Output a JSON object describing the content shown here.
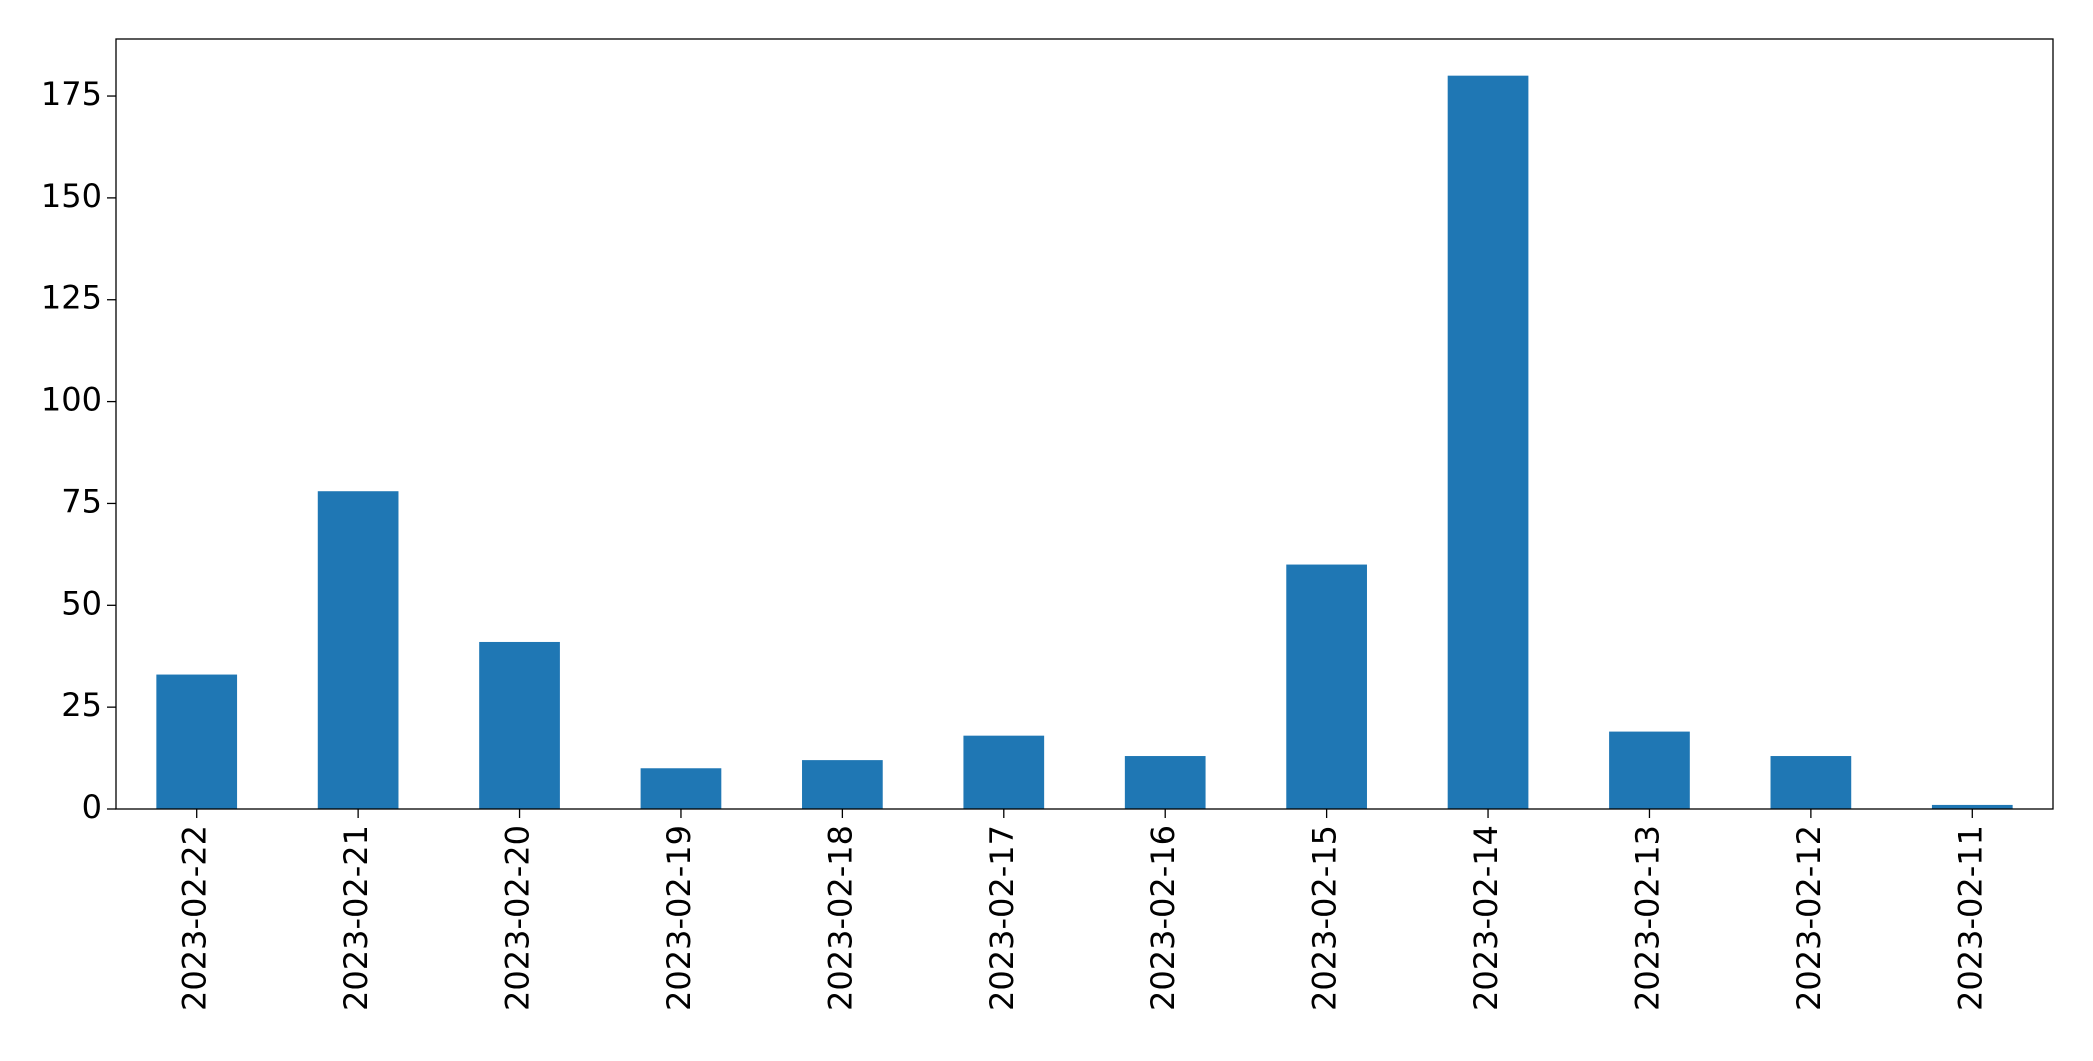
{
  "chart_data": {
    "type": "bar",
    "categories": [
      "2023-02-22",
      "2023-02-21",
      "2023-02-20",
      "2023-02-19",
      "2023-02-18",
      "2023-02-17",
      "2023-02-16",
      "2023-02-15",
      "2023-02-14",
      "2023-02-13",
      "2023-02-12",
      "2023-02-11"
    ],
    "values": [
      33,
      78,
      41,
      10,
      12,
      18,
      13,
      60,
      180,
      19,
      13,
      1
    ],
    "color": "#1f77b4",
    "ylim": [
      0,
      189
    ],
    "yticks": [
      0,
      25,
      50,
      75,
      100,
      125,
      150,
      175
    ],
    "grid": false
  }
}
